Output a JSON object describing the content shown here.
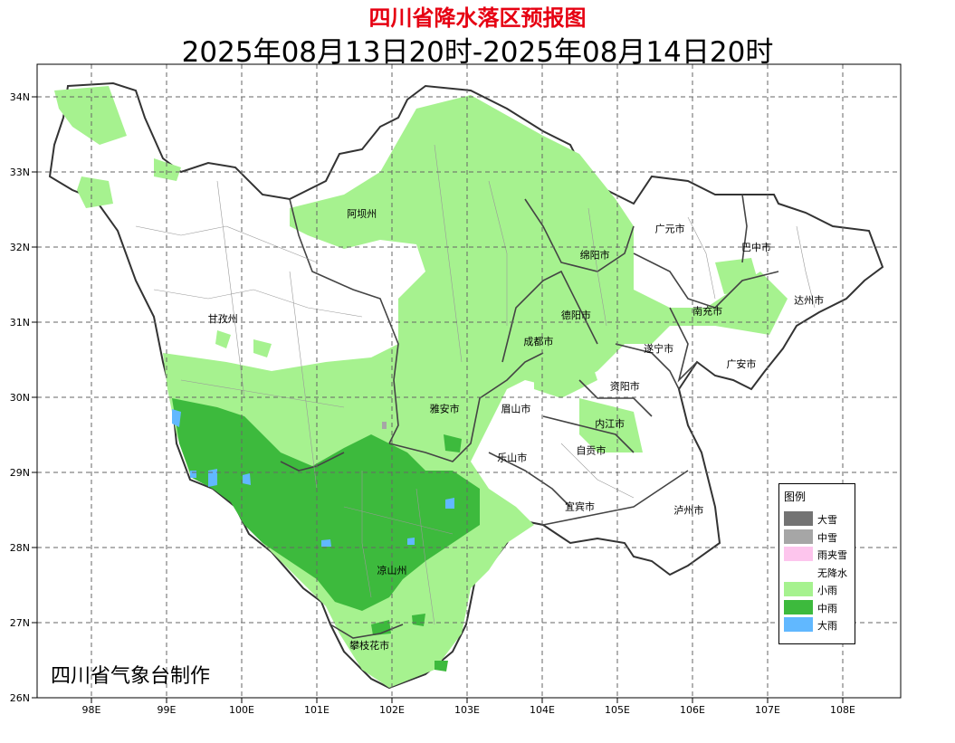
{
  "title": "四川省降水落区预报图",
  "subtitle": "2025年08月13日20时-2025年08月14日20时",
  "credit": "四川省气象台制作",
  "axes": {
    "lon_ticks": [
      "98E",
      "99E",
      "100E",
      "101E",
      "102E",
      "103E",
      "104E",
      "105E",
      "106E",
      "107E",
      "108E"
    ],
    "lat_ticks": [
      "26N",
      "27N",
      "28N",
      "29N",
      "30N",
      "31N",
      "32N",
      "33N",
      "34N"
    ]
  },
  "regions": [
    {
      "name": "阿坝州",
      "lon": 101.6,
      "lat": 32.4
    },
    {
      "name": "甘孜州",
      "lon": 99.75,
      "lat": 31.0
    },
    {
      "name": "凉山州",
      "lon": 102.0,
      "lat": 27.65
    },
    {
      "name": "攀枝花市",
      "lon": 101.7,
      "lat": 26.65
    },
    {
      "name": "雅安市",
      "lon": 102.7,
      "lat": 29.8
    },
    {
      "name": "眉山市",
      "lon": 103.65,
      "lat": 29.8
    },
    {
      "name": "乐山市",
      "lon": 103.6,
      "lat": 29.15
    },
    {
      "name": "成都市",
      "lon": 103.95,
      "lat": 30.7
    },
    {
      "name": "德阳市",
      "lon": 104.45,
      "lat": 31.05
    },
    {
      "name": "绵阳市",
      "lon": 104.7,
      "lat": 31.85
    },
    {
      "name": "广元市",
      "lon": 105.7,
      "lat": 32.2
    },
    {
      "name": "巴中市",
      "lon": 106.85,
      "lat": 31.95
    },
    {
      "name": "达州市",
      "lon": 107.55,
      "lat": 31.25
    },
    {
      "name": "南充市",
      "lon": 106.2,
      "lat": 31.1
    },
    {
      "name": "遂宁市",
      "lon": 105.55,
      "lat": 30.6
    },
    {
      "name": "广安市",
      "lon": 106.65,
      "lat": 30.4
    },
    {
      "name": "资阳市",
      "lon": 105.1,
      "lat": 30.1
    },
    {
      "name": "内江市",
      "lon": 104.9,
      "lat": 29.6
    },
    {
      "name": "自贡市",
      "lon": 104.65,
      "lat": 29.25
    },
    {
      "name": "宜宾市",
      "lon": 104.5,
      "lat": 28.5
    },
    {
      "name": "泸州市",
      "lon": 105.95,
      "lat": 28.45
    }
  ],
  "legend": {
    "title": "图例",
    "items": [
      {
        "label": "大雪",
        "color": "#737373"
      },
      {
        "label": "中雪",
        "color": "#a6a6a6"
      },
      {
        "label": "雨夹雪",
        "color": "#fdc5ed"
      },
      {
        "label": "无降水",
        "color": "#ffffff"
      },
      {
        "label": "小雨",
        "color": "#a6f28f"
      },
      {
        "label": "中雨",
        "color": "#3dba3d"
      },
      {
        "label": "大雨",
        "color": "#61b8ff"
      }
    ]
  }
}
